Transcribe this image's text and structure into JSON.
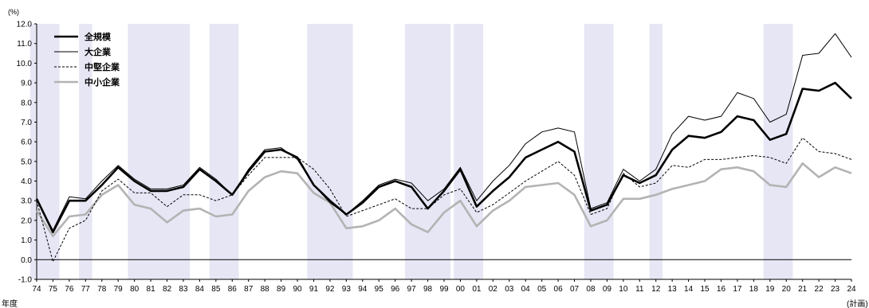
{
  "chart_data": {
    "type": "line",
    "title": "",
    "unit_label": "(%)",
    "x_axis_title": "年度",
    "x": [
      "74",
      "75",
      "76",
      "77",
      "78",
      "79",
      "80",
      "81",
      "82",
      "83",
      "84",
      "85",
      "86",
      "87",
      "88",
      "89",
      "90",
      "91",
      "92",
      "93",
      "94",
      "95",
      "96",
      "97",
      "98",
      "99",
      "00",
      "01",
      "02",
      "03",
      "04",
      "05",
      "06",
      "07",
      "08",
      "09",
      "10",
      "11",
      "12",
      "13",
      "14",
      "15",
      "16",
      "17",
      "18",
      "19",
      "20",
      "21",
      "22",
      "23",
      "24"
    ],
    "last_x_note": "(計画)",
    "ylim": [
      -1.0,
      12.0
    ],
    "yticks": [
      "-1.0",
      "0.0",
      "1.0",
      "2.0",
      "3.0",
      "4.0",
      "5.0",
      "6.0",
      "7.0",
      "8.0",
      "9.0",
      "10.0",
      "11.0",
      "12.0"
    ],
    "grid": false,
    "legend_position": "top-left",
    "recession_bands": [
      [
        "74",
        "75"
      ],
      [
        "77",
        "77"
      ],
      [
        "80",
        "83"
      ],
      [
        "85",
        "86"
      ],
      [
        "91",
        "93"
      ],
      [
        "97",
        "99"
      ],
      [
        "00",
        "01"
      ],
      [
        "08",
        "09"
      ],
      [
        "12",
        "12"
      ],
      [
        "19",
        "20"
      ]
    ],
    "series": [
      {
        "name": "全規模",
        "style": "thick",
        "color": "#000000",
        "values": [
          3.1,
          1.4,
          3.0,
          3.0,
          3.8,
          4.7,
          4.0,
          3.5,
          3.5,
          3.7,
          4.6,
          4.0,
          3.3,
          4.5,
          5.5,
          5.6,
          5.2,
          3.8,
          3.0,
          2.3,
          2.9,
          3.7,
          4.0,
          3.7,
          2.6,
          3.5,
          4.6,
          2.7,
          3.5,
          4.2,
          5.2,
          5.6,
          6.0,
          5.5,
          2.5,
          2.8,
          4.3,
          3.9,
          4.3,
          5.6,
          6.3,
          6.2,
          6.5,
          7.3,
          7.1,
          6.1,
          6.4,
          8.7,
          8.6,
          9.0,
          8.2
        ]
      },
      {
        "name": "大企業",
        "style": "thin",
        "color": "#000000",
        "values": [
          3.1,
          1.5,
          3.2,
          3.1,
          4.0,
          4.8,
          4.1,
          3.6,
          3.6,
          3.8,
          4.7,
          4.1,
          3.3,
          4.6,
          5.6,
          5.7,
          5.1,
          3.8,
          2.9,
          2.3,
          3.0,
          3.8,
          4.1,
          3.9,
          3.0,
          3.6,
          4.7,
          3.0,
          4.0,
          4.8,
          5.9,
          6.5,
          6.7,
          6.5,
          2.6,
          2.9,
          4.6,
          4.0,
          4.6,
          6.4,
          7.3,
          7.1,
          7.3,
          8.5,
          8.2,
          7.0,
          7.4,
          10.4,
          10.5,
          11.5,
          10.3
        ]
      },
      {
        "name": "中堅企業",
        "style": "dashed",
        "color": "#000000",
        "values": [
          3.0,
          -0.1,
          1.6,
          2.0,
          3.5,
          4.1,
          3.4,
          3.4,
          2.7,
          3.3,
          3.3,
          3.0,
          3.3,
          4.3,
          5.2,
          5.2,
          5.2,
          4.6,
          3.6,
          2.2,
          2.5,
          2.8,
          3.1,
          2.6,
          2.6,
          3.3,
          3.6,
          2.4,
          2.8,
          3.4,
          4.0,
          4.5,
          5.0,
          4.3,
          2.3,
          2.6,
          4.4,
          3.7,
          3.9,
          4.8,
          4.7,
          5.1,
          5.1,
          5.2,
          5.3,
          5.2,
          4.9,
          6.2,
          5.5,
          5.4,
          5.1
        ]
      },
      {
        "name": "中小企業",
        "style": "gray",
        "color": "#b3b3b3",
        "values": [
          2.5,
          1.2,
          2.2,
          2.3,
          3.3,
          3.8,
          2.8,
          2.6,
          1.9,
          2.5,
          2.6,
          2.2,
          2.3,
          3.5,
          4.2,
          4.5,
          4.4,
          3.4,
          2.9,
          1.6,
          1.7,
          2.0,
          2.6,
          1.8,
          1.4,
          2.4,
          3.0,
          1.7,
          2.5,
          3.0,
          3.7,
          3.8,
          3.9,
          3.3,
          1.7,
          2.0,
          3.1,
          3.1,
          3.3,
          3.6,
          3.8,
          4.0,
          4.6,
          4.7,
          4.5,
          3.8,
          3.7,
          4.9,
          4.2,
          4.7,
          4.4
        ]
      }
    ]
  }
}
